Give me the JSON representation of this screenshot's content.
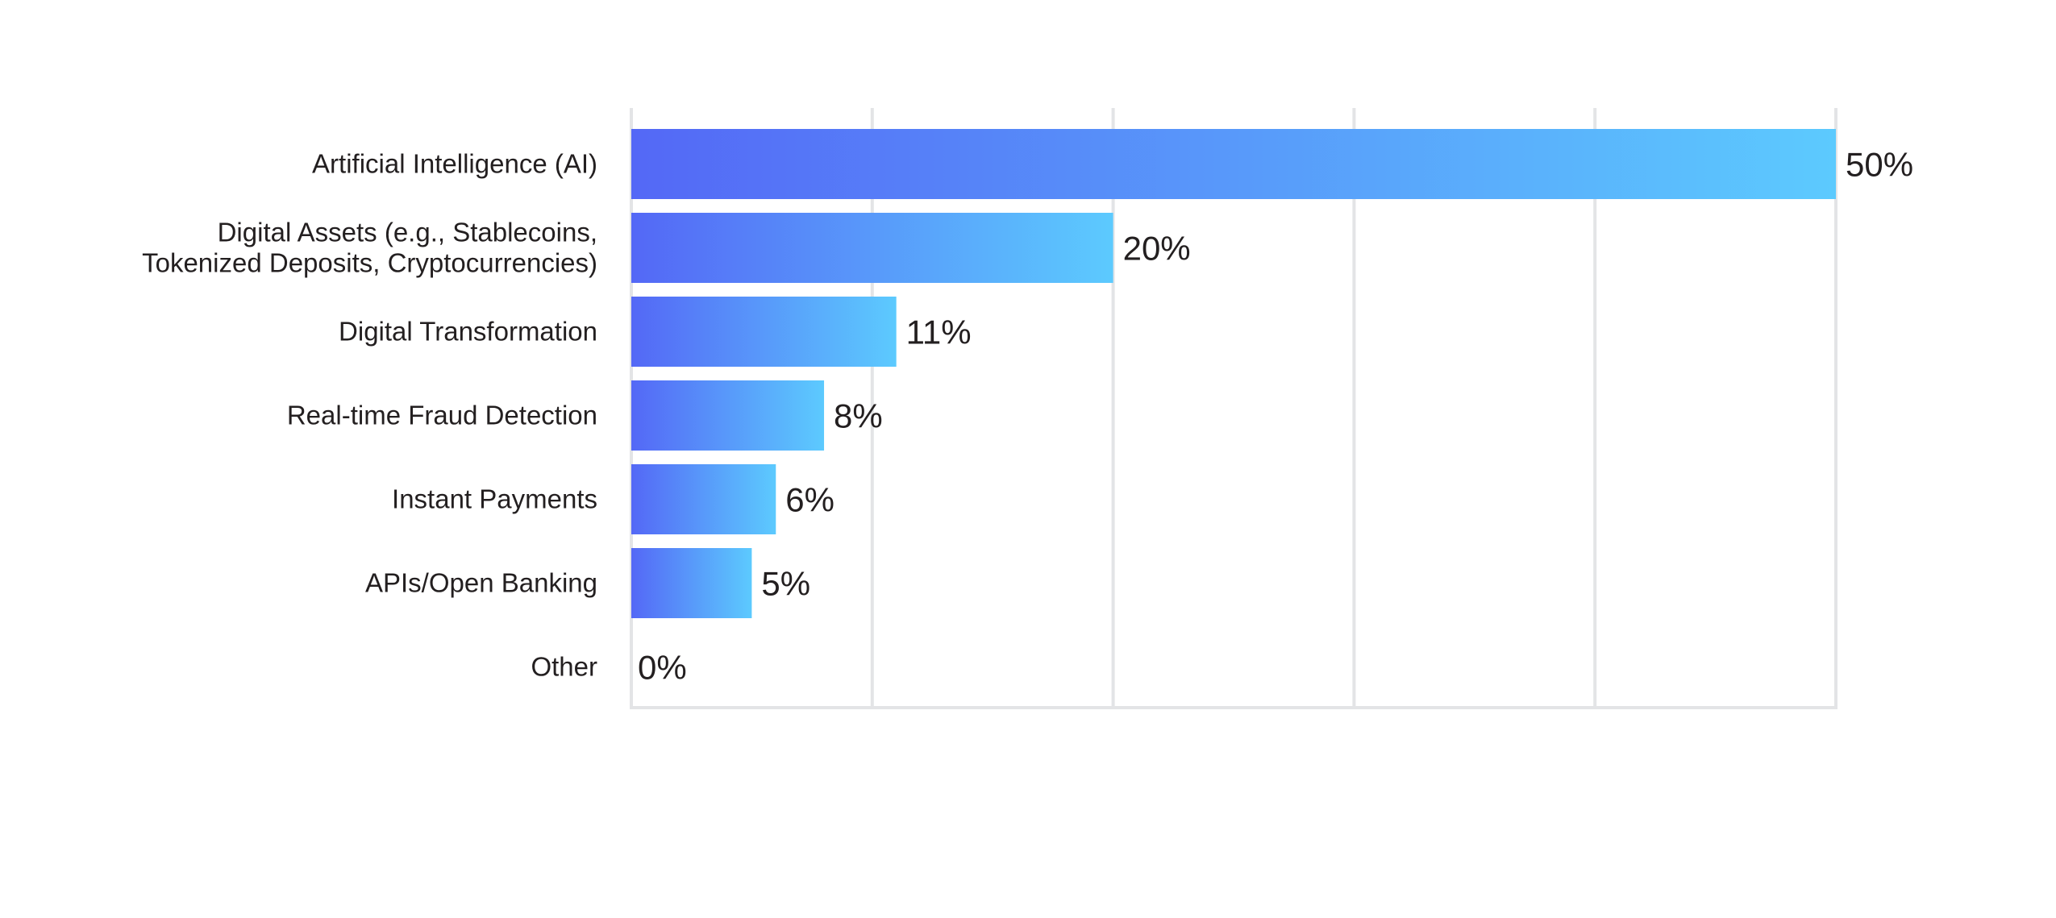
{
  "chart_data": {
    "type": "bar",
    "orientation": "horizontal",
    "title": "",
    "xlabel": "",
    "ylabel": "",
    "categories": [
      [
        "Artificial Intelligence (AI)"
      ],
      [
        "Digital Assets (e.g., Stablecoins,",
        "Tokenized Deposits, Cryptocurrencies)"
      ],
      [
        "Digital Transformation"
      ],
      [
        "Real-time Fraud Detection"
      ],
      [
        "Instant Payments"
      ],
      [
        "APIs/Open Banking"
      ],
      [
        "Other"
      ]
    ],
    "values": [
      50,
      20,
      11,
      8,
      6,
      5,
      0
    ],
    "value_labels": [
      "50%",
      "20%",
      "11%",
      "8%",
      "6%",
      "5%",
      "0%"
    ],
    "xlim": [
      0,
      50
    ],
    "x_gridlines": [
      0,
      10,
      20,
      30,
      40,
      50
    ],
    "grid": true,
    "colors": {
      "gradient_start": "#5468F6",
      "gradient_end": "#5CCAFE",
      "grid": "#E3E4E6",
      "text": "#231F20"
    }
  }
}
